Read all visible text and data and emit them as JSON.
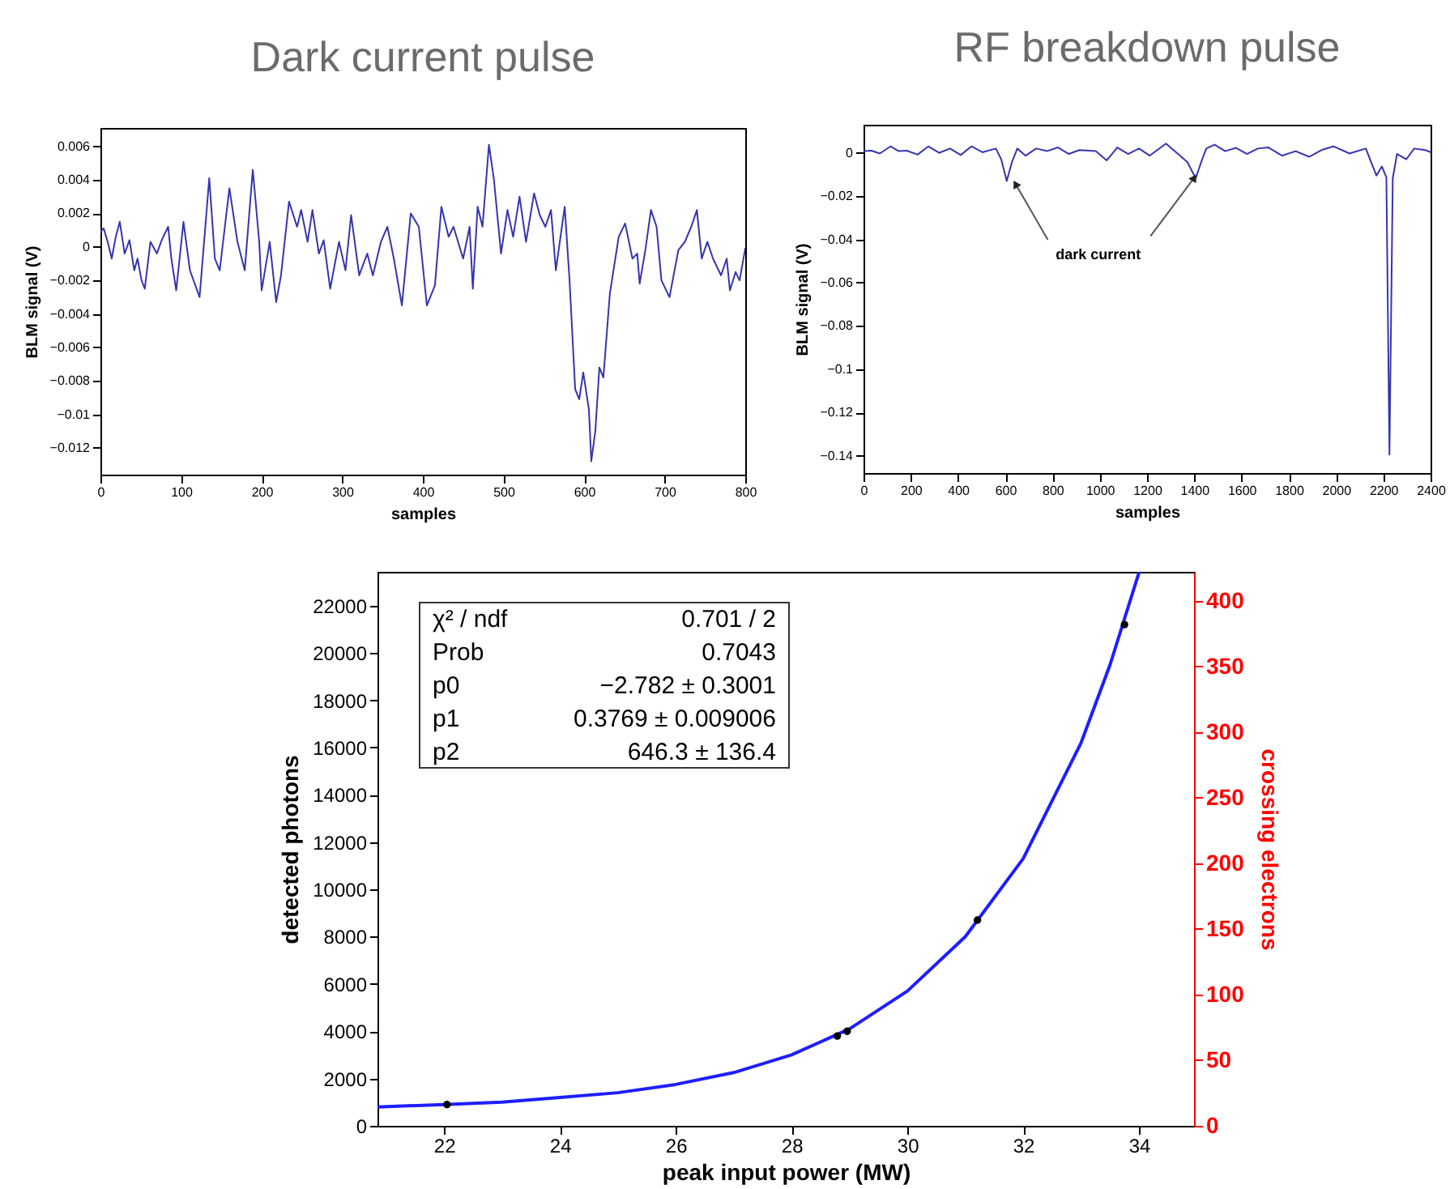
{
  "chart_data": [
    {
      "type": "line",
      "title": "Dark current pulse",
      "xlabel": "samples",
      "ylabel": "BLM signal (V)",
      "xlim": [
        0,
        800
      ],
      "xticks": [
        0,
        100,
        200,
        300,
        400,
        500,
        600,
        700,
        800
      ],
      "ylim": [
        -0.0136,
        0.0071
      ],
      "yticks": [
        -0.012,
        -0.01,
        -0.008,
        -0.006,
        -0.004,
        -0.002,
        0,
        0.002,
        0.004,
        0.006
      ],
      "x": [
        0,
        4,
        9,
        14,
        19,
        24,
        30,
        36,
        42,
        46,
        51,
        55,
        62,
        70,
        76,
        84,
        88,
        94,
        103,
        111,
        123,
        135,
        142,
        148,
        160,
        170,
        179,
        189,
        197,
        200,
        210,
        218,
        224,
        234,
        244,
        249,
        257,
        263,
        271,
        277,
        285,
        296,
        304,
        311,
        321,
        331,
        338,
        348,
        356,
        364,
        374,
        385,
        395,
        405,
        415,
        423,
        432,
        438,
        450,
        458,
        462,
        468,
        474,
        482,
        488,
        497,
        505,
        512,
        520,
        528,
        538,
        545,
        552,
        559,
        565,
        576,
        582,
        589,
        594,
        599,
        606,
        609,
        614,
        619,
        624,
        632,
        643,
        651,
        660,
        666,
        669,
        676,
        683,
        690,
        696,
        706,
        717,
        725,
        733,
        740,
        746,
        753,
        760,
        770,
        777,
        781,
        788,
        793,
        800
      ],
      "series": [
        {
          "color": "#3535b0",
          "values": [
            0.0009,
            0.0011,
            0.0003,
            -0.0007,
            0.0006,
            0.0015,
            -0.0004,
            0.0004,
            -0.0014,
            -0.0007,
            -0.002,
            -0.0025,
            0.0003,
            -0.0004,
            0.0004,
            0.0012,
            -0.0007,
            -0.0026,
            0.0015,
            -0.0014,
            -0.003,
            0.0041,
            -0.0007,
            -0.0014,
            0.0035,
            0.0003,
            -0.0014,
            0.0046,
            0.0003,
            -0.0026,
            0.0003,
            -0.0033,
            -0.0017,
            0.0027,
            0.0012,
            0.0022,
            0.0003,
            0.0022,
            -0.0004,
            0.0004,
            -0.0025,
            0.0003,
            -0.0014,
            0.0019,
            -0.0017,
            -0.0004,
            -0.0017,
            0.0003,
            0.0012,
            -0.0007,
            -0.0035,
            0.002,
            0.0012,
            -0.0035,
            -0.0023,
            0.0024,
            0.0006,
            0.0012,
            -0.0007,
            0.0012,
            -0.0025,
            0.0024,
            0.0012,
            0.0061,
            0.0041,
            -0.0004,
            0.0022,
            0.0006,
            0.003,
            0.0003,
            0.0032,
            0.0019,
            0.0012,
            0.0022,
            -0.0014,
            0.0024,
            -0.002,
            -0.0085,
            -0.0091,
            -0.0075,
            -0.0097,
            -0.0128,
            -0.011,
            -0.0072,
            -0.0078,
            -0.0028,
            0.0006,
            0.0014,
            -0.0007,
            -0.0004,
            -0.0022,
            -0.0002,
            0.0022,
            0.0012,
            -0.002,
            -0.003,
            -0.0002,
            0.0003,
            0.0012,
            0.0022,
            -0.0007,
            0.0003,
            -0.0007,
            -0.0017,
            -0.0007,
            -0.0026,
            -0.0015,
            -0.002,
            -0.0001
          ]
        }
      ]
    },
    {
      "type": "line",
      "title": "RF breakdown pulse",
      "xlabel": "samples",
      "ylabel": "BLM signal (V)",
      "xlim": [
        0,
        2400
      ],
      "xticks": [
        0,
        200,
        400,
        600,
        800,
        1000,
        1200,
        1400,
        1600,
        1800,
        2000,
        2200,
        2400
      ],
      "ylim": [
        -0.148,
        0.013
      ],
      "yticks": [
        -0.14,
        -0.12,
        -0.1,
        -0.08,
        -0.06,
        -0.04,
        -0.02,
        0
      ],
      "annotations": [
        {
          "text": "dark current",
          "x": 1400,
          "y": -0.0115
        }
      ],
      "x": [
        0,
        34,
        69,
        114,
        149,
        183,
        229,
        274,
        320,
        366,
        411,
        457,
        503,
        560,
        583,
        606,
        629,
        651,
        686,
        731,
        777,
        823,
        869,
        914,
        983,
        1029,
        1074,
        1120,
        1166,
        1211,
        1280,
        1326,
        1371,
        1406,
        1429,
        1451,
        1486,
        1531,
        1577,
        1623,
        1669,
        1714,
        1771,
        1829,
        1886,
        1943,
        1989,
        2057,
        2126,
        2171,
        2194,
        2213,
        2226,
        2240,
        2258,
        2297,
        2331,
        2377,
        2400
      ],
      "series": [
        {
          "color": "#3535b0",
          "values": [
            0.0008,
            0.001,
            -0.0003,
            0.003,
            0.0008,
            0.001,
            -0.0008,
            0.003,
            0,
            0.002,
            -0.001,
            0.003,
            0.0003,
            0.002,
            -0.003,
            -0.013,
            -0.004,
            0.002,
            -0.0013,
            0.002,
            0.0008,
            0.0025,
            -0.0005,
            0.0013,
            0.0008,
            -0.0035,
            0.0025,
            -0.0005,
            0.002,
            -0.0013,
            0.0043,
            0,
            -0.0043,
            -0.0118,
            -0.0043,
            0.002,
            0.0038,
            0.0008,
            0.0023,
            -0.0005,
            0.002,
            0.0025,
            -0.0013,
            0.0008,
            -0.0018,
            0.0015,
            0.003,
            -0.0003,
            0.002,
            -0.0105,
            -0.0063,
            -0.0113,
            -0.1395,
            -0.0118,
            -0.0005,
            -0.003,
            0.002,
            0.0013,
            0.0003
          ]
        }
      ]
    },
    {
      "type": "line",
      "xlabel": "peak input power (MW)",
      "ylabel": "detected photons",
      "y2label": "crossing electrons",
      "xlim": [
        20.85,
        34.95
      ],
      "xticks": [
        22,
        24,
        26,
        28,
        30,
        32,
        34
      ],
      "ylim": [
        0,
        23430
      ],
      "yticks": [
        0,
        2000,
        4000,
        6000,
        8000,
        10000,
        12000,
        14000,
        16000,
        18000,
        20000,
        22000
      ],
      "y2lim": [
        0,
        422
      ],
      "y2ticks": [
        0,
        50,
        100,
        150,
        200,
        250,
        300,
        350,
        400
      ],
      "annotations": [
        "χ² / ndf",
        "0.701 / 2",
        "Prob",
        "0.7043",
        "p0",
        "−2.782 ± 0.3001",
        "p1",
        "0.3769 ± 0.009006",
        "p2",
        "646.3 ± 136.4"
      ],
      "series": [
        {
          "type": "line",
          "color": "#1e1eff",
          "x": [
            20.85,
            22,
            23,
            24,
            25,
            26,
            27,
            28,
            29,
            30,
            31,
            32,
            33,
            33.5,
            34
          ],
          "values": [
            800,
            900,
            1000,
            1200,
            1400,
            1750,
            2250,
            3000,
            4100,
            5700,
            8000,
            11300,
            16200,
            19500,
            23400
          ]
        },
        {
          "type": "scatter",
          "color": "#000000",
          "marker": "circle",
          "x": [
            22.05,
            28.79,
            28.96,
            31.21,
            33.75
          ],
          "values": [
            900,
            3800,
            4000,
            8700,
            21200
          ]
        }
      ]
    }
  ]
}
